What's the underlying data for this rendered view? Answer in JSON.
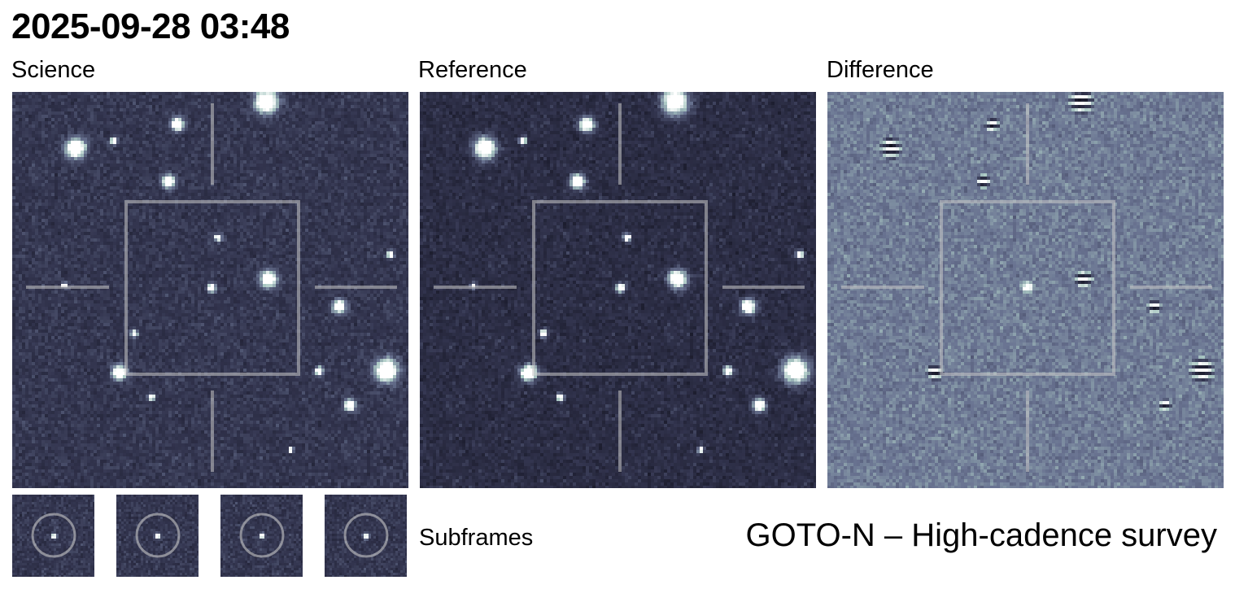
{
  "header": {
    "title": "2025-09-28 03:48"
  },
  "panels": [
    {
      "label": "Science"
    },
    {
      "label": "Reference"
    },
    {
      "label": "Difference"
    }
  ],
  "subframes": {
    "label": "Subframes",
    "count": 4
  },
  "footer": {
    "survey": "GOTO-N – High-cadence survey"
  },
  "colors": {
    "overlay": "#c8c8c8",
    "background_dark": "#2a2c44",
    "difference_bg": "#8a90a8"
  }
}
